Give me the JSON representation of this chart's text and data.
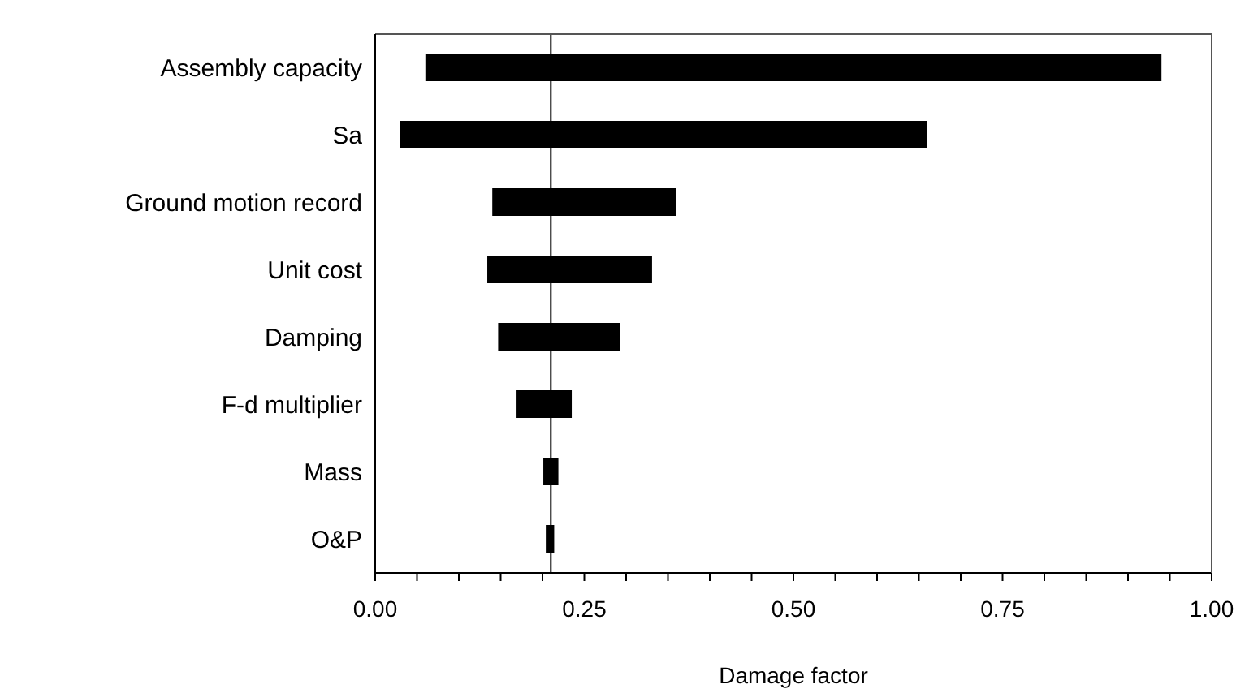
{
  "chart_data": {
    "type": "bar",
    "orientation": "horizontal",
    "xlabel": "Damage factor",
    "categories": [
      "Assembly capacity",
      "Sa",
      "Ground motion record",
      "Unit cost",
      "Damping",
      "F-d multiplier",
      "Mass",
      "O&P"
    ],
    "base": [
      0.06,
      0.03,
      0.14,
      0.134,
      0.147,
      0.169,
      0.201,
      0.204
    ],
    "values": [
      0.88,
      0.63,
      0.22,
      0.197,
      0.146,
      0.066,
      0.018,
      0.01
    ],
    "color": "#000000",
    "xlim": [
      0,
      1
    ],
    "xticks": [
      {
        "value": 0,
        "label": "0.00"
      },
      {
        "value": 0.05,
        "label": null
      },
      {
        "value": 0.1,
        "label": null
      },
      {
        "value": 0.15,
        "label": null
      },
      {
        "value": 0.2,
        "label": null
      },
      {
        "value": 0.25,
        "label": "0.25"
      },
      {
        "value": 0.3,
        "label": null
      },
      {
        "value": 0.35,
        "label": null
      },
      {
        "value": 0.4,
        "label": null
      },
      {
        "value": 0.45,
        "label": null
      },
      {
        "value": 0.5,
        "label": "0.50"
      },
      {
        "value": 0.55,
        "label": null
      },
      {
        "value": 0.6,
        "label": null
      },
      {
        "value": 0.65,
        "label": null
      },
      {
        "value": 0.7,
        "label": null
      },
      {
        "value": 0.75,
        "label": "0.75"
      },
      {
        "value": 0.8,
        "label": null
      },
      {
        "value": 0.85,
        "label": null
      },
      {
        "value": 0.9,
        "label": null
      },
      {
        "value": 0.95,
        "label": null
      },
      {
        "value": 1,
        "label": "1.00"
      }
    ],
    "ref_lines": [
      {
        "axis": "x",
        "value": 0.21,
        "color": "#000000"
      }
    ],
    "grid": false,
    "legend": false
  }
}
